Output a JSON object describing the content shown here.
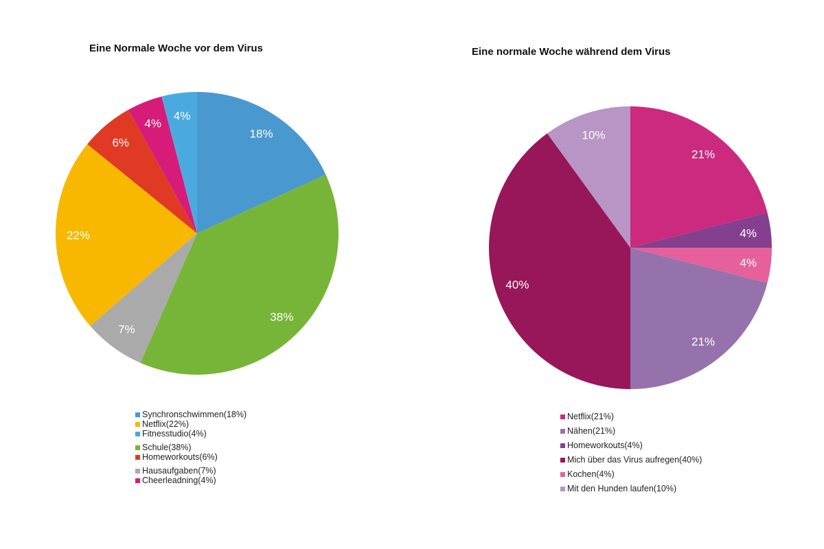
{
  "chart_data": [
    {
      "type": "pie",
      "title": "Eine Normale Woche vor dem Virus",
      "slices": [
        {
          "label": "Synchronschwimmen",
          "value": 18,
          "color": "#4a98d0"
        },
        {
          "label": "Schule",
          "value": 38,
          "color": "#77b538"
        },
        {
          "label": "Hausaufgaben",
          "value": 7,
          "color": "#aaaaaa"
        },
        {
          "label": "Netflix",
          "value": 22,
          "color": "#f8b800"
        },
        {
          "label": "Homeworkouts",
          "value": 6,
          "color": "#e03a24"
        },
        {
          "label": "Cheerleadning",
          "value": 4,
          "color": "#d61c78"
        },
        {
          "label": "Fitnesstudio",
          "value": 4,
          "color": "#4aaae0"
        }
      ],
      "data_labels": [
        "18%",
        "38%",
        "7%",
        "22%",
        "6%",
        "4%",
        "4%"
      ],
      "legend": [
        {
          "text": "Synchronschwimmen(18%)",
          "color": "#4a98d0",
          "gap": false
        },
        {
          "text": "Netflix(22%)",
          "color": "#f8b800",
          "gap": false
        },
        {
          "text": "Fitnesstudio(4%)",
          "color": "#4aaae0",
          "gap": false
        },
        {
          "text": "Schule(38%)",
          "color": "#77b538",
          "gap": true
        },
        {
          "text": "Homeworkouts(6%)",
          "color": "#e03a24",
          "gap": false
        },
        {
          "text": "Hausaufgaben(7%)",
          "color": "#aaaaaa",
          "gap": true
        },
        {
          "text": "Cheerleadning(4%)",
          "color": "#d61c78",
          "gap": false
        }
      ],
      "legend_position": "bottom"
    },
    {
      "type": "pie",
      "title": "Eine normale Woche während dem Virus",
      "slices": [
        {
          "label": "Netflix",
          "value": 21,
          "color": "#cb2a7e"
        },
        {
          "label": "Homeworkouts",
          "value": 4,
          "color": "#84408e"
        },
        {
          "label": "Kochen",
          "value": 4,
          "color": "#e6609c"
        },
        {
          "label": "Nähen",
          "value": 21,
          "color": "#9672ad"
        },
        {
          "label": "Mich über das Virus aufregen",
          "value": 40,
          "color": "#97175a"
        },
        {
          "label": "Mit den Hunden laufen",
          "value": 10,
          "color": "#b895c4"
        }
      ],
      "data_labels": [
        "21%",
        "4%",
        "4%",
        "21%",
        "40%",
        "10%"
      ],
      "legend": [
        {
          "text": "Netflix(21%)",
          "color": "#cb2a7e",
          "gap": false
        },
        {
          "text": "Nähen(21%)",
          "color": "#9672ad",
          "gap": true
        },
        {
          "text": "Homeworkouts(4%)",
          "color": "#84408e",
          "gap": true
        },
        {
          "text": "Mich über das Virus aufregen(40%)",
          "color": "#97175a",
          "gap": true
        },
        {
          "text": "Kochen(4%)",
          "color": "#e6609c",
          "gap": true
        },
        {
          "text": "Mit den Hunden laufen(10%)",
          "color": "#b895c4",
          "gap": true
        }
      ],
      "legend_position": "bottom"
    }
  ]
}
